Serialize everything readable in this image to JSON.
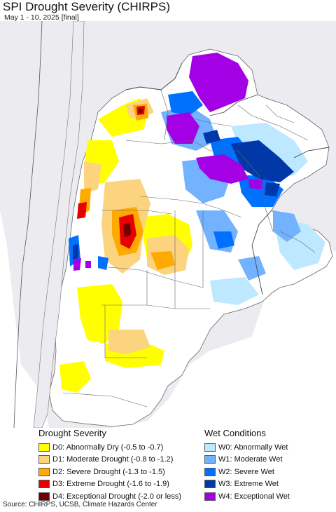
{
  "header": {
    "title": "SPI Drought Severity (CHIRPS)",
    "subtitle": "May 1 - 10, 2025 [final]"
  },
  "map": {
    "ocean_color": "#ffffff",
    "outside_land_color": "#ececf0",
    "border_color": "#555555"
  },
  "legend": {
    "drought": {
      "heading": "Drought Severity",
      "items": [
        {
          "label": "D0: Abnormally Dry (-0.5 to -0.7)",
          "color": "#ffff00"
        },
        {
          "label": "D1: Moderate Drought (-0.8 to -1.2)",
          "color": "#fcd37f"
        },
        {
          "label": "D2: Severe Drought (-1.3 to -1.5)",
          "color": "#ffaa00"
        },
        {
          "label": "D3: Extreme Drought (-1.6 to -1.9)",
          "color": "#e60000"
        },
        {
          "label": "D4: Exceptional Drought (-2.0 or less)",
          "color": "#730000"
        }
      ]
    },
    "wet": {
      "heading": "Wet Conditions",
      "items": [
        {
          "label": "W0: Abnormally Wet",
          "color": "#bee8ff"
        },
        {
          "label": "W1: Moderate Wet",
          "color": "#73b2ff"
        },
        {
          "label": "W2: Severe Wet",
          "color": "#0070ff"
        },
        {
          "label": "W3: Extreme Wet",
          "color": "#0038a8"
        },
        {
          "label": "W4: Exceptional Wet",
          "color": "#a300e6"
        }
      ]
    }
  },
  "footer": {
    "source": "Source: CHIRPS, UCSB, Climate Hazards Center"
  }
}
